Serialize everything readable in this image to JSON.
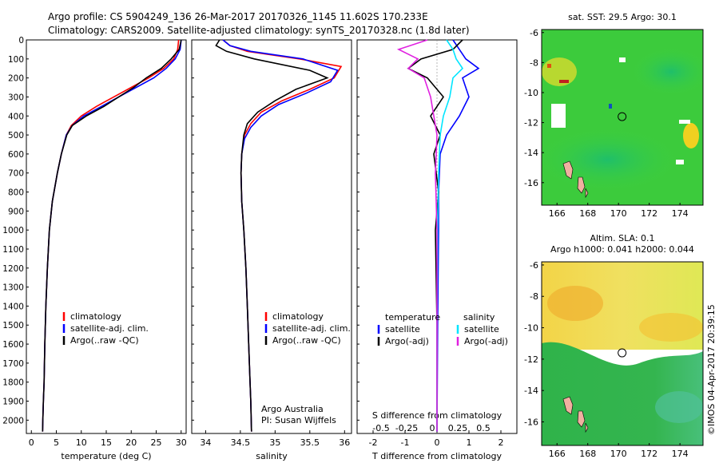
{
  "header": {
    "line1": "Argo profile: CS 5904249_136 26-Mar-2017 20170326_1145 11.602S 170.233E",
    "line2": "Climatology: CARS2009. Satellite-adjusted climatology: synTS_20170328.nc (1.8d later)"
  },
  "colors": {
    "climatology": "#ff0000",
    "satellite": "#0000ff",
    "argo": "#000000",
    "satellite_s": "#00e5ff",
    "argo_s": "#e020e0",
    "marker": "#000000"
  },
  "chart_data": [
    {
      "type": "line",
      "panel": "temperature",
      "xlabel": "temperature (deg C)",
      "ylabel": "",
      "xlim": [
        -1,
        31
      ],
      "ylim": [
        2070,
        0
      ],
      "y_reversed": true,
      "xticks": [
        0,
        5,
        10,
        15,
        20,
        25,
        30
      ],
      "yticks": [
        0,
        100,
        200,
        300,
        400,
        500,
        600,
        700,
        800,
        900,
        1000,
        1100,
        1200,
        1300,
        1400,
        1500,
        1600,
        1700,
        1800,
        1900,
        2000
      ],
      "legend": [
        "climatology",
        "satellite-adj. clim.",
        "Argo(..raw -QC)"
      ],
      "series": [
        {
          "name": "climatology",
          "color": "#ff0000",
          "x": [
            29.5,
            29.3,
            28.5,
            26.5,
            23.5,
            20.0,
            16.5,
            13.0,
            10.0,
            8.0,
            7.0,
            6.0,
            5.2,
            4.2,
            3.6,
            3.2,
            2.9,
            2.7,
            2.55,
            2.4,
            2.3,
            2.25
          ],
          "y": [
            0,
            50,
            100,
            150,
            200,
            250,
            300,
            350,
            400,
            450,
            500,
            600,
            700,
            850,
            1000,
            1200,
            1400,
            1600,
            1800,
            1900,
            2000,
            2060
          ]
        },
        {
          "name": "satellite-adj. clim.",
          "color": "#0000ff",
          "x": [
            30.0,
            29.8,
            28.8,
            27.0,
            24.5,
            21.0,
            17.5,
            14.0,
            10.5,
            8.2,
            7.0,
            6.0,
            5.2,
            4.2,
            3.6,
            3.2,
            2.9,
            2.7,
            2.55,
            2.4,
            2.3,
            2.25
          ],
          "y": [
            0,
            50,
            100,
            150,
            200,
            250,
            300,
            350,
            400,
            450,
            500,
            600,
            700,
            850,
            1000,
            1200,
            1400,
            1600,
            1800,
            1900,
            2000,
            2060
          ]
        },
        {
          "name": "Argo(..raw -QC)",
          "color": "#000000",
          "x": [
            30.0,
            29.6,
            28.0,
            26.0,
            23.0,
            20.5,
            17.5,
            14.5,
            11.0,
            8.2,
            7.1,
            6.0,
            5.2,
            4.2,
            3.6,
            3.2,
            2.9,
            2.7,
            2.55,
            2.4,
            2.3,
            2.25
          ],
          "y": [
            0,
            50,
            100,
            150,
            200,
            250,
            300,
            350,
            400,
            450,
            500,
            600,
            700,
            850,
            1000,
            1200,
            1400,
            1600,
            1800,
            1900,
            2000,
            2060
          ]
        }
      ]
    },
    {
      "type": "line",
      "panel": "salinity",
      "xlabel": "salinity",
      "xlim": [
        33.8,
        36.1
      ],
      "ylim": [
        2070,
        0
      ],
      "y_reversed": true,
      "xticks": [
        34,
        34.5,
        35,
        35.5,
        36
      ],
      "legend": [
        "climatology",
        "satellite-adj. clim.",
        "Argo(..raw -QC)"
      ],
      "annotation": [
        "Argo Australia",
        "PI: Susan Wijffels"
      ],
      "series": [
        {
          "name": "climatology",
          "color": "#ff0000",
          "x": [
            34.25,
            34.35,
            34.6,
            35.35,
            35.95,
            35.85,
            35.5,
            35.1,
            34.8,
            34.65,
            34.56,
            34.52,
            34.51,
            34.52,
            34.55,
            34.58,
            34.6,
            34.62,
            34.64,
            34.65,
            34.66
          ],
          "y": [
            0,
            30,
            60,
            100,
            140,
            200,
            260,
            320,
            380,
            440,
            500,
            600,
            700,
            850,
            1000,
            1200,
            1400,
            1600,
            1800,
            1900,
            2060
          ]
        },
        {
          "name": "satellite-adj. clim.",
          "color": "#0000ff",
          "x": [
            34.25,
            34.35,
            34.65,
            35.4,
            35.9,
            35.8,
            35.45,
            35.05,
            34.8,
            34.65,
            34.56,
            34.52,
            34.51,
            34.52,
            34.55,
            34.58,
            34.6,
            34.62,
            34.64,
            34.65,
            34.66
          ],
          "y": [
            0,
            30,
            60,
            100,
            160,
            220,
            280,
            340,
            400,
            460,
            520,
            600,
            700,
            850,
            1000,
            1200,
            1400,
            1600,
            1800,
            1900,
            2060
          ]
        },
        {
          "name": "Argo(..raw -QC)",
          "color": "#000000",
          "x": [
            34.2,
            34.15,
            34.3,
            34.7,
            35.5,
            35.75,
            35.3,
            35.0,
            34.75,
            34.6,
            34.55,
            34.52,
            34.51,
            34.52,
            34.55,
            34.58,
            34.6,
            34.62,
            34.64,
            34.65,
            34.66
          ],
          "y": [
            0,
            30,
            60,
            100,
            160,
            200,
            260,
            320,
            380,
            440,
            500,
            600,
            700,
            850,
            1000,
            1200,
            1400,
            1600,
            1800,
            1900,
            2060
          ]
        }
      ]
    },
    {
      "type": "line",
      "panel": "difference",
      "xlabel": "T difference from climatology",
      "xlabel_top": "S difference from climatology",
      "xlim": [
        -2.5,
        2.5
      ],
      "ylim": [
        2070,
        0
      ],
      "y_reversed": true,
      "xticks": [
        -2,
        -1,
        0,
        1,
        2
      ],
      "xticks_s": [
        "-0.5",
        "-0.25",
        "0",
        "0.25",
        "0.5"
      ],
      "legend_t": {
        "title": "temperature",
        "items": [
          "satellite",
          "Argo(-adj)"
        ]
      },
      "legend_s": {
        "title": "salinity",
        "items": [
          "satellite",
          "Argo(-adj)"
        ]
      },
      "series": [
        {
          "name": "T satellite",
          "color": "#0000ff",
          "x": [
            0.5,
            0.7,
            0.9,
            1.3,
            0.8,
            1.0,
            0.7,
            0.3,
            0.1,
            0.05,
            0.05,
            0.02,
            0.0
          ],
          "y": [
            0,
            50,
            100,
            150,
            200,
            300,
            400,
            500,
            600,
            800,
            1000,
            1500,
            2060
          ]
        },
        {
          "name": "T Argo(-adj)",
          "color": "#000000",
          "x": [
            0.8,
            0.5,
            -0.5,
            -0.9,
            -0.3,
            0.2,
            -0.2,
            0.1,
            -0.1,
            0.05,
            -0.05,
            0.0,
            0.0
          ],
          "y": [
            0,
            50,
            100,
            150,
            200,
            300,
            400,
            500,
            600,
            800,
            1000,
            1500,
            2060
          ]
        },
        {
          "name": "S satellite",
          "color": "#00e5ff",
          "x": [
            0.3,
            0.5,
            0.6,
            0.8,
            0.5,
            0.4,
            0.2,
            0.1,
            0.05,
            0.02,
            0.0,
            0.0
          ],
          "y": [
            0,
            50,
            100,
            150,
            200,
            300,
            400,
            500,
            700,
            1000,
            1500,
            2060
          ]
        },
        {
          "name": "S Argo(-adj)",
          "color": "#e020e0",
          "x": [
            -0.3,
            -1.2,
            -0.6,
            -0.9,
            -0.4,
            -0.2,
            -0.1,
            0.0,
            -0.05,
            0.0,
            0.0,
            0.0
          ],
          "y": [
            0,
            50,
            100,
            150,
            200,
            300,
            400,
            500,
            700,
            1000,
            1500,
            2060
          ]
        }
      ]
    },
    {
      "type": "heatmap",
      "panel": "sst_map",
      "title": "sat. SST: 29.5 Argo: 30.1",
      "xlim": [
        165,
        175.5
      ],
      "ylim": [
        -17.5,
        -5.8
      ],
      "xticks": [
        166,
        168,
        170,
        172,
        174
      ],
      "yticks": [
        -6,
        -8,
        -10,
        -12,
        -14,
        -16
      ],
      "marker": {
        "lon": 170.233,
        "lat": -11.602
      }
    },
    {
      "type": "heatmap",
      "panel": "sla_map",
      "title": "Altim. SLA: 0.1",
      "subtitle": "Argo h1000: 0.041 h2000: 0.044",
      "xlim": [
        165,
        175.5
      ],
      "ylim": [
        -17.5,
        -5.8
      ],
      "xticks": [
        166,
        168,
        170,
        172,
        174
      ],
      "yticks": [
        -6,
        -8,
        -10,
        -12,
        -14,
        -16
      ],
      "marker": {
        "lon": 170.233,
        "lat": -11.602
      }
    }
  ],
  "footer": {
    "imos_stamp": "©IMOS 04-Apr-2017 20:39:15"
  }
}
